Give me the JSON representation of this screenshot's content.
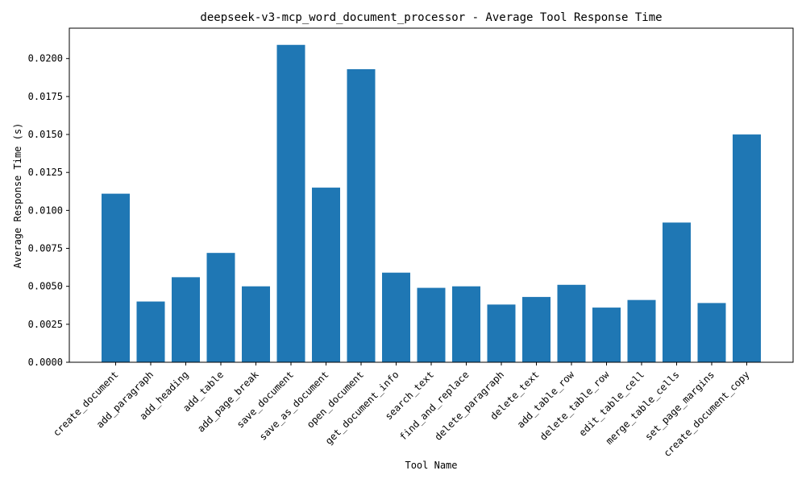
{
  "chart_data": {
    "type": "bar",
    "title": "deepseek-v3-mcp_word_document_processor - Average Tool Response Time",
    "xlabel": "Tool Name",
    "ylabel": "Average Response Time (s)",
    "ylim": [
      0,
      0.022
    ],
    "yticks": [
      "0.0000",
      "0.0025",
      "0.0050",
      "0.0075",
      "0.0100",
      "0.0125",
      "0.0150",
      "0.0175",
      "0.0200"
    ],
    "categories": [
      "create_document",
      "add_paragraph",
      "add_heading",
      "add_table",
      "add_page_break",
      "save_document",
      "save_as_document",
      "open_document",
      "get_document_info",
      "search_text",
      "find_and_replace",
      "delete_paragraph",
      "delete_text",
      "add_table_row",
      "delete_table_row",
      "edit_table_cell",
      "merge_table_cells",
      "set_page_margins",
      "create_document_copy"
    ],
    "values": [
      0.0111,
      0.004,
      0.0056,
      0.0072,
      0.005,
      0.0209,
      0.0115,
      0.0193,
      0.0059,
      0.0049,
      0.005,
      0.0038,
      0.0043,
      0.0051,
      0.0036,
      0.0041,
      0.0092,
      0.0039,
      0.015
    ],
    "bar_color": "#1f77b4",
    "grid": false,
    "legend": "none"
  }
}
